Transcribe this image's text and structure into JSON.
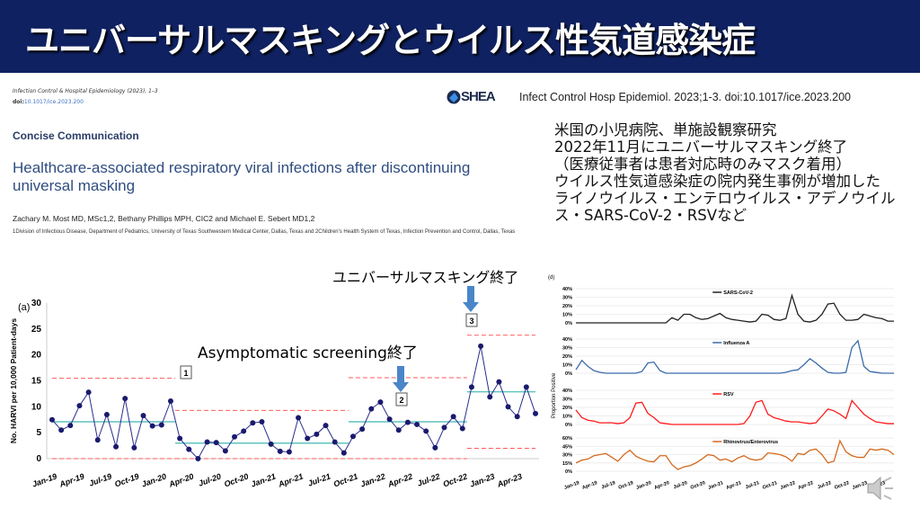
{
  "header": {
    "title": "ユニバーサルマスキングとウイルス性気道感染症"
  },
  "paper": {
    "journal": "Infection Control & Hospital Epidemiology (2023), 1–3",
    "doi_prefix": "doi:",
    "doi": "10.1017/ice.2023.200",
    "section": "Concise Communication",
    "title": "Healthcare-associated respiratory viral infections after discontinuing universal masking",
    "authors": "Zachary M. Most MD, MSc1,2, Bethany Phillips MPH, CIC2 and Michael E. Sebert MD1,2",
    "affiliation": "1Division of Infectious Disease, Department of Pediatrics, University of Texas Southwestern Medical Center, Dallas, Texas and 2Children's Health System of Texas, Infection Prevention and Control, Dallas, Texas",
    "publisher_logo": "SHEA"
  },
  "citation": "Infect Control Hosp Epidemiol. 2023;1-3. doi:10.1017/ice.2023.200",
  "summary": [
    "米国の小児病院、単施設観察研究",
    "2022年11月にユニバーサルマスキング終了",
    "（医療従事者は患者対応時のみマスク着用）",
    "ウイルス性気道感染症の院内発生事例が増加した",
    "ライノウイルス・エンテロウイルス・アデノウイルス・SARS-CoV-2・RSVなど"
  ],
  "annotations": {
    "masking_end": "ユニバーサルマスキング終了",
    "screening_end": "Asymptomatic screening終了",
    "box1": "1",
    "box2": "2",
    "box3": "3"
  },
  "colors": {
    "header": "#0f2160",
    "series": "#2b2d8c",
    "center": "#5fc4c0",
    "limit": "#ff5a5a",
    "arrow": "#4a86c8"
  },
  "chart_data": [
    {
      "type": "line",
      "panel_label": "(a)",
      "ylabel": "No. HARVI per 10,000 Patient-days",
      "ylim": [
        0,
        30
      ],
      "yticks": [
        0,
        5,
        10,
        15,
        20,
        25,
        30
      ],
      "x": [
        "Jan-19",
        "Feb-19",
        "Mar-19",
        "Apr-19",
        "May-19",
        "Jun-19",
        "Jul-19",
        "Aug-19",
        "Sep-19",
        "Oct-19",
        "Nov-19",
        "Dec-19",
        "Jan-20",
        "Feb-20",
        "Mar-20",
        "Apr-20",
        "May-20",
        "Jun-20",
        "Jul-20",
        "Aug-20",
        "Sep-20",
        "Oct-20",
        "Nov-20",
        "Dec-20",
        "Jan-21",
        "Feb-21",
        "Mar-21",
        "Apr-21",
        "May-21",
        "Jun-21",
        "Jul-21",
        "Aug-21",
        "Sep-21",
        "Oct-21",
        "Nov-21",
        "Dec-21",
        "Jan-22",
        "Feb-22",
        "Mar-22",
        "Apr-22",
        "May-22",
        "Jun-22",
        "Jul-22",
        "Aug-22",
        "Sep-22",
        "Oct-22",
        "Nov-22",
        "Dec-22",
        "Jan-23",
        "Feb-23",
        "Mar-23",
        "Apr-23",
        "May-23",
        "Jun-23"
      ],
      "xtick_labels": [
        "Jan-19",
        "Apr-19",
        "Jul-19",
        "Oct-19",
        "Jan-20",
        "Apr-20",
        "Jul-20",
        "Oct-20",
        "Jan-21",
        "Apr-21",
        "Jul-21",
        "Oct-21",
        "Jan-22",
        "Apr-22",
        "Jul-22",
        "Oct-22",
        "Jan-23",
        "Apr-23"
      ],
      "values": [
        7.5,
        5.5,
        6.4,
        10.2,
        12.8,
        3.6,
        8.5,
        2.3,
        11.6,
        2.1,
        8.3,
        6.3,
        6.5,
        11.1,
        3.9,
        1.8,
        0,
        3.2,
        3.1,
        1.5,
        4.2,
        5.3,
        6.9,
        7.1,
        2.8,
        1.4,
        1.3,
        7.9,
        3.9,
        4.7,
        6.4,
        3.2,
        1.1,
        4.3,
        5.7,
        9.6,
        10.9,
        7.6,
        5.5,
        7.0,
        6.6,
        5.3,
        2.1,
        6.0,
        8.1,
        5.8,
        13.8,
        21.7,
        11.9,
        14.8,
        10.0,
        8.1,
        13.8,
        8.7
      ],
      "phases": [
        {
          "start": 0,
          "end": 13,
          "center": 7.1,
          "ucl": 15.5,
          "lcl": 0
        },
        {
          "start": 14,
          "end": 32,
          "center": 3.0,
          "ucl": 9.3,
          "lcl": 0
        },
        {
          "start": 33,
          "end": 45,
          "center": 7.1,
          "ucl": 15.6,
          "lcl": 0
        },
        {
          "start": 46,
          "end": 53,
          "center": 12.9,
          "ucl": 23.8,
          "lcl": 2.0
        }
      ]
    },
    {
      "type": "line",
      "panel_label": "(d)",
      "ylabel": "Proportion Positive",
      "xtick_labels": [
        "Jan-19",
        "Apr-19",
        "Jul-19",
        "Oct-19",
        "Jan-20",
        "Apr-20",
        "Jul-20",
        "Oct-20",
        "Jan-21",
        "Apr-21",
        "Jul-21",
        "Oct-21",
        "Jan-22",
        "Apr-22",
        "Jul-22",
        "Oct-22",
        "Jan-23",
        "Apr-23"
      ],
      "series": [
        {
          "name": "SARS-CoV-2",
          "color": "#222222",
          "ylim": [
            0,
            40
          ],
          "yticks": [
            "0%",
            "10%",
            "20%",
            "30%",
            "40%"
          ],
          "values": [
            0,
            0,
            0,
            0,
            0,
            0,
            0,
            0,
            0,
            0,
            0,
            0,
            0,
            0,
            0,
            0,
            6,
            3,
            10,
            10,
            6,
            4,
            5,
            8,
            11,
            6,
            4,
            3,
            2,
            1,
            2,
            10,
            9,
            4,
            3,
            5,
            32,
            10,
            2,
            1,
            3,
            10,
            22,
            23,
            10,
            3,
            3,
            4,
            10,
            8,
            6,
            5,
            2,
            2
          ]
        },
        {
          "name": "Influenza A",
          "color": "#3a6aa8",
          "ylim": [
            0,
            40
          ],
          "yticks": [
            "0%",
            "10%",
            "20%",
            "30%",
            "40%"
          ],
          "values": [
            4,
            15,
            8,
            3,
            1,
            0,
            0,
            0,
            0,
            0,
            0,
            2,
            12,
            13,
            3,
            0,
            0,
            0,
            0,
            0,
            0,
            0,
            0,
            0,
            0,
            0,
            0,
            0,
            0,
            0,
            0,
            0,
            0,
            0,
            0,
            1,
            3,
            4,
            10,
            17,
            12,
            6,
            1,
            0,
            0,
            1,
            30,
            38,
            8,
            2,
            1,
            0,
            0,
            0
          ]
        },
        {
          "name": "RSV",
          "color": "#ff1a1a",
          "ylim": [
            0,
            40
          ],
          "yticks": [
            "0%",
            "10%",
            "20%",
            "30%",
            "40%"
          ],
          "values": [
            17,
            8,
            5,
            4,
            2,
            2,
            2,
            1,
            2,
            8,
            25,
            26,
            13,
            8,
            2,
            1,
            0,
            0,
            0,
            0,
            0,
            0,
            0,
            0,
            0,
            0,
            0,
            0,
            1,
            10,
            26,
            28,
            12,
            8,
            6,
            4,
            3,
            3,
            2,
            1,
            2,
            10,
            18,
            16,
            12,
            7,
            28,
            20,
            12,
            7,
            3,
            2,
            1,
            1
          ]
        },
        {
          "name": "Rhinovirus/Enterovirus",
          "color": "#d2691e",
          "ylim": [
            0,
            60
          ],
          "yticks": [
            "0%",
            "15%",
            "30%",
            "45%",
            "60%"
          ],
          "values": [
            15,
            20,
            22,
            28,
            30,
            32,
            25,
            18,
            30,
            38,
            27,
            22,
            18,
            17,
            28,
            28,
            12,
            3,
            8,
            10,
            15,
            22,
            30,
            28,
            20,
            22,
            17,
            24,
            28,
            22,
            20,
            22,
            33,
            32,
            30,
            26,
            18,
            32,
            30,
            38,
            40,
            30,
            15,
            18,
            55,
            35,
            28,
            25,
            25,
            40,
            38,
            40,
            38,
            30
          ]
        }
      ]
    }
  ]
}
